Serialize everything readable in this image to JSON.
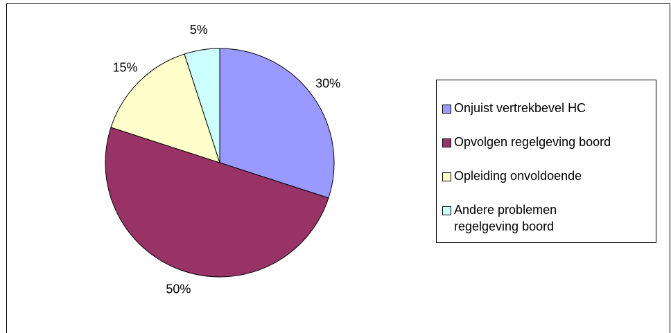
{
  "chart_data": {
    "type": "pie",
    "categories": [
      "Onjuist vertrekbevel HC",
      "Opvolgen regelgeving boord",
      "Opleiding onvoldoende",
      "Andere problemen regelgeving boord"
    ],
    "values": [
      30,
      50,
      15,
      5
    ],
    "value_labels": [
      "30%",
      "50%",
      "15%",
      "5%"
    ],
    "colors": [
      "#9999ff",
      "#993366",
      "#ffffcc",
      "#ccffff"
    ],
    "legend": "right"
  }
}
